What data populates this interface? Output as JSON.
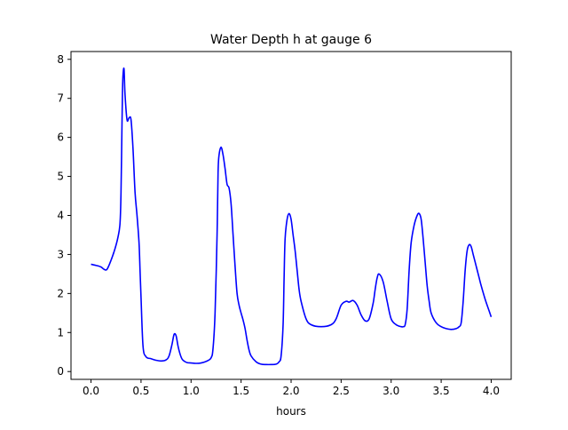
{
  "chart_data": {
    "type": "line",
    "title": "Water Depth h at gauge 6",
    "xlabel": "hours",
    "ylabel": "",
    "xlim": [
      -0.2,
      4.2
    ],
    "ylim": [
      -0.2,
      8.2
    ],
    "xticks": [
      0.0,
      0.5,
      1.0,
      1.5,
      2.0,
      2.5,
      3.0,
      3.5,
      4.0
    ],
    "xtick_labels": [
      "0.0",
      "0.5",
      "1.0",
      "1.5",
      "2.0",
      "2.5",
      "3.0",
      "3.5",
      "4.0"
    ],
    "yticks": [
      0,
      1,
      2,
      3,
      4,
      5,
      6,
      7,
      8
    ],
    "ytick_labels": [
      "0",
      "1",
      "2",
      "3",
      "4",
      "5",
      "6",
      "7",
      "8"
    ],
    "grid": false,
    "series": [
      {
        "color": "#0000ff",
        "x": [
          0.0,
          0.05,
          0.1,
          0.13,
          0.16,
          0.2,
          0.24,
          0.27,
          0.29,
          0.3,
          0.31,
          0.315,
          0.32,
          0.33,
          0.34,
          0.36,
          0.38,
          0.4,
          0.42,
          0.44,
          0.46,
          0.48,
          0.49,
          0.5,
          0.52,
          0.55,
          0.6,
          0.65,
          0.7,
          0.75,
          0.78,
          0.81,
          0.83,
          0.85,
          0.87,
          0.89,
          0.91,
          0.93,
          0.96,
          1.0,
          1.05,
          1.1,
          1.15,
          1.2,
          1.22,
          1.24,
          1.26,
          1.27,
          1.28,
          1.3,
          1.32,
          1.34,
          1.36,
          1.38,
          1.4,
          1.42,
          1.44,
          1.46,
          1.48,
          1.5,
          1.52,
          1.54,
          1.56,
          1.58,
          1.6,
          1.65,
          1.7,
          1.75,
          1.8,
          1.85,
          1.88,
          1.9,
          1.92,
          1.93,
          1.94,
          1.96,
          1.98,
          2.0,
          2.02,
          2.04,
          2.06,
          2.08,
          2.1,
          2.15,
          2.2,
          2.3,
          2.4,
          2.45,
          2.5,
          2.55,
          2.58,
          2.62,
          2.66,
          2.7,
          2.74,
          2.78,
          2.82,
          2.84,
          2.86,
          2.88,
          2.92,
          2.96,
          3.0,
          3.05,
          3.1,
          3.12,
          3.14,
          3.16,
          3.18,
          3.2,
          3.23,
          3.26,
          3.28,
          3.3,
          3.32,
          3.34,
          3.36,
          3.38,
          3.4,
          3.45,
          3.5,
          3.55,
          3.6,
          3.65,
          3.68,
          3.7,
          3.72,
          3.74,
          3.76,
          3.78,
          3.8,
          3.82,
          3.84,
          3.86,
          3.88,
          3.9,
          3.94,
          3.98,
          4.0
        ],
        "y": [
          2.75,
          2.72,
          2.68,
          2.62,
          2.62,
          2.85,
          3.15,
          3.45,
          3.8,
          4.6,
          6.4,
          7.2,
          7.6,
          7.75,
          7.1,
          6.45,
          6.5,
          6.45,
          5.7,
          4.6,
          4.0,
          3.3,
          2.6,
          1.9,
          0.65,
          0.38,
          0.33,
          0.29,
          0.27,
          0.3,
          0.4,
          0.7,
          0.95,
          0.92,
          0.65,
          0.45,
          0.32,
          0.27,
          0.23,
          0.22,
          0.21,
          0.22,
          0.26,
          0.35,
          0.6,
          1.5,
          3.5,
          5.1,
          5.55,
          5.75,
          5.55,
          5.2,
          4.8,
          4.7,
          4.3,
          3.5,
          2.7,
          2.0,
          1.7,
          1.5,
          1.32,
          1.1,
          0.8,
          0.55,
          0.4,
          0.25,
          0.19,
          0.18,
          0.18,
          0.19,
          0.25,
          0.4,
          1.2,
          2.4,
          3.4,
          3.9,
          4.05,
          3.9,
          3.5,
          3.1,
          2.6,
          2.1,
          1.8,
          1.35,
          1.2,
          1.15,
          1.2,
          1.35,
          1.7,
          1.8,
          1.78,
          1.82,
          1.7,
          1.45,
          1.3,
          1.35,
          1.75,
          2.1,
          2.4,
          2.5,
          2.3,
          1.8,
          1.35,
          1.2,
          1.15,
          1.15,
          1.2,
          1.6,
          2.6,
          3.3,
          3.75,
          4.0,
          4.05,
          3.9,
          3.4,
          2.8,
          2.2,
          1.8,
          1.5,
          1.25,
          1.15,
          1.1,
          1.08,
          1.1,
          1.15,
          1.25,
          1.8,
          2.6,
          3.1,
          3.25,
          3.2,
          3.0,
          2.8,
          2.6,
          2.4,
          2.2,
          1.85,
          1.55,
          1.4
        ]
      }
    ]
  }
}
